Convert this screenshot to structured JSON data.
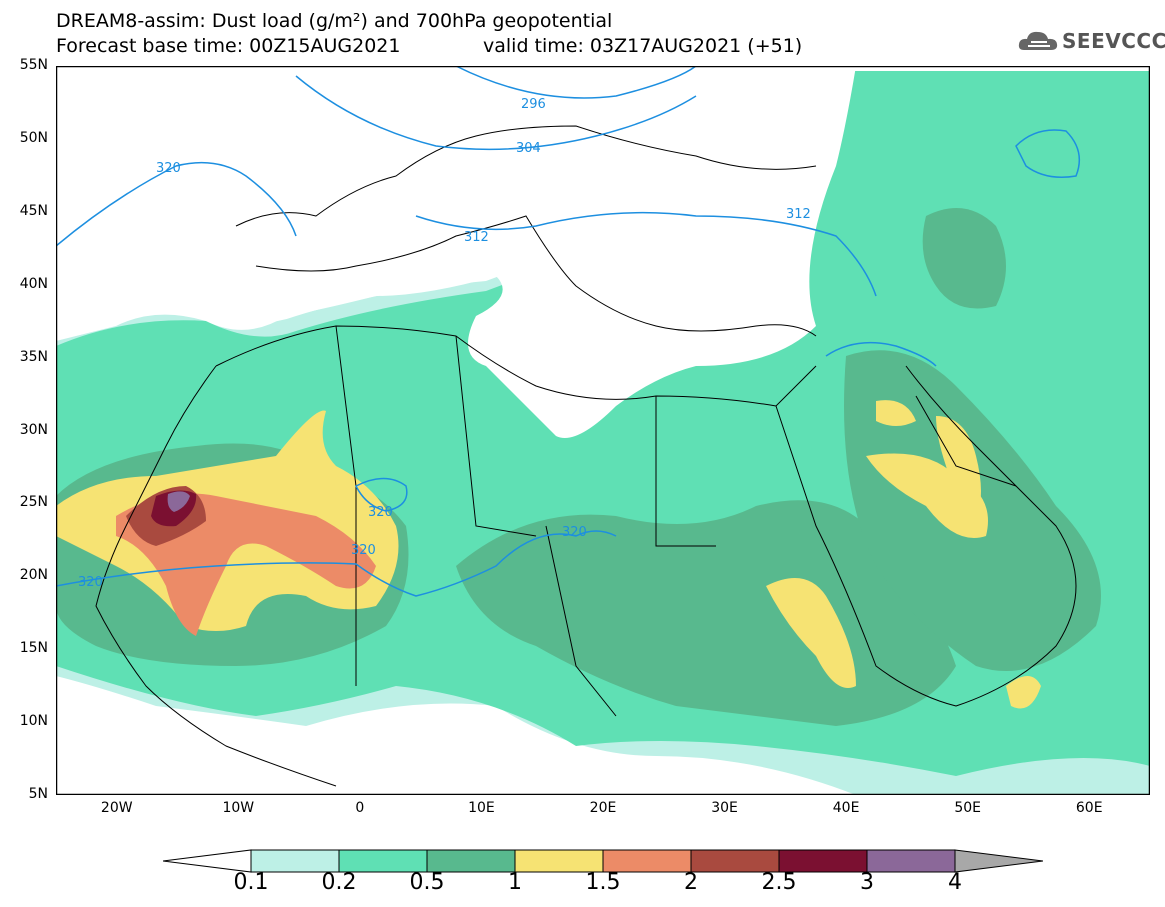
{
  "header": {
    "title_line1": "DREAM8-assim: Dust load (g/m²) and 700hPa geopotential",
    "title_line2": "Forecast base time: 00Z15AUG2021",
    "valid_time": "valid time: 03Z17AUG2021 (+51)",
    "logo_text": "SEEVCCC"
  },
  "axes": {
    "lat_labels": [
      "55N",
      "50N",
      "45N",
      "40N",
      "35N",
      "30N",
      "25N",
      "20N",
      "15N",
      "10N",
      "5N"
    ],
    "lon_labels": [
      "20W",
      "10W",
      "0",
      "10E",
      "20E",
      "30E",
      "40E",
      "50E",
      "60E"
    ],
    "lat_range": [
      5,
      55
    ],
    "lon_range": [
      -25,
      65
    ]
  },
  "contours": {
    "labels": [
      "296",
      "304",
      "312",
      "312",
      "320",
      "320",
      "320",
      "320",
      "320"
    ]
  },
  "colorbar": {
    "levels": [
      "0.1",
      "0.2",
      "0.5",
      "1",
      "1.5",
      "2",
      "2.5",
      "3",
      "4"
    ],
    "colors": [
      "#ffffff",
      "#bdf0e6",
      "#5fe0b4",
      "#58b98e",
      "#f6e373",
      "#ec8b67",
      "#a94a3f",
      "#7b1031",
      "#8b6899",
      "#a8a8a8"
    ]
  }
}
